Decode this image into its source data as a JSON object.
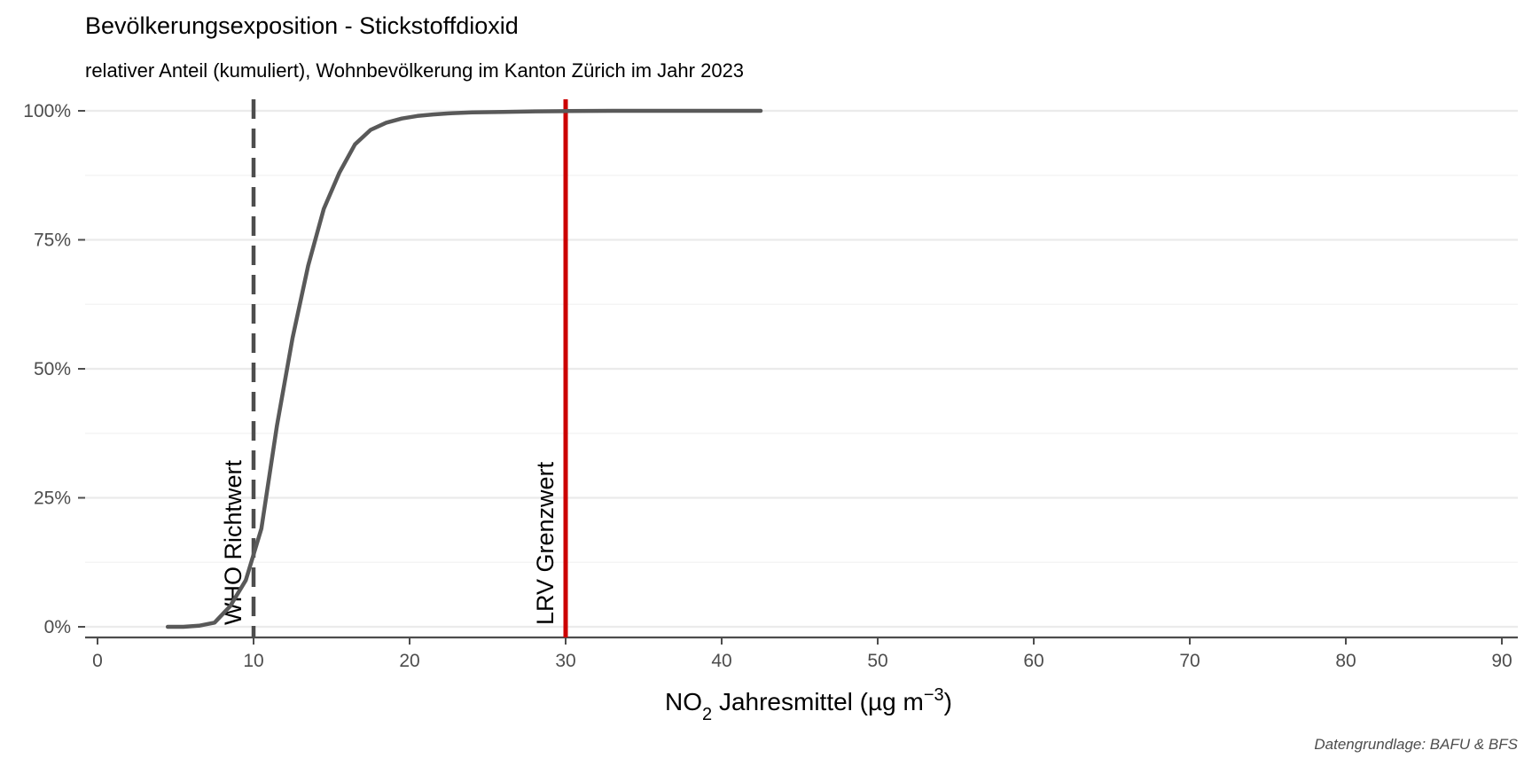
{
  "chart_data": {
    "type": "line",
    "title": "Bevölkerungsexposition - Stickstoffdioxid",
    "subtitle": "relativer Anteil (kumuliert), Wohnbevölkerung im Kanton Zürich im Jahr 2023",
    "xlabel": {
      "main": "NO",
      "sub": "2",
      "rest": " Jahresmittel (µg m",
      "sup": "−3",
      "end": ")"
    },
    "ylabel": "",
    "caption": "Datengrundlage: BAFU & BFS",
    "xlim": [
      0,
      90
    ],
    "ylim": [
      0,
      1
    ],
    "x_ticks": [
      0,
      10,
      20,
      30,
      40,
      50,
      60,
      70,
      80,
      90
    ],
    "x_tick_labels": [
      "0",
      "10",
      "20",
      "30",
      "40",
      "50",
      "60",
      "70",
      "80",
      "90"
    ],
    "y_ticks": [
      0,
      0.25,
      0.5,
      0.75,
      1.0
    ],
    "y_tick_labels": [
      "0%",
      "25%",
      "50%",
      "75%",
      "100%"
    ],
    "grid": true,
    "series": [
      {
        "color": "#595959",
        "points": [
          [
            4.5,
            0.0
          ],
          [
            5.5,
            0.0
          ],
          [
            6.5,
            0.002
          ],
          [
            7.5,
            0.008
          ],
          [
            8.5,
            0.04
          ],
          [
            9.5,
            0.09
          ],
          [
            10.5,
            0.19
          ],
          [
            11.5,
            0.39
          ],
          [
            12.5,
            0.56
          ],
          [
            13.5,
            0.7
          ],
          [
            14.5,
            0.81
          ],
          [
            15.5,
            0.88
          ],
          [
            16.5,
            0.935
          ],
          [
            17.5,
            0.963
          ],
          [
            18.5,
            0.977
          ],
          [
            19.5,
            0.985
          ],
          [
            20.5,
            0.99
          ],
          [
            21.5,
            0.993
          ],
          [
            22.5,
            0.995
          ],
          [
            24,
            0.997
          ],
          [
            26,
            0.998
          ],
          [
            28,
            0.999
          ],
          [
            30,
            0.9995
          ],
          [
            33,
            1.0
          ],
          [
            36,
            1.0
          ],
          [
            39,
            1.0
          ],
          [
            42.5,
            1.0
          ]
        ]
      }
    ],
    "reference_lines": [
      {
        "x": 10,
        "label": "WHO Richtwert",
        "style": "dashed",
        "color": "#4d4d4d"
      },
      {
        "x": 30,
        "label": "LRV Grenzwert",
        "style": "solid",
        "color": "#cc0000"
      }
    ]
  }
}
